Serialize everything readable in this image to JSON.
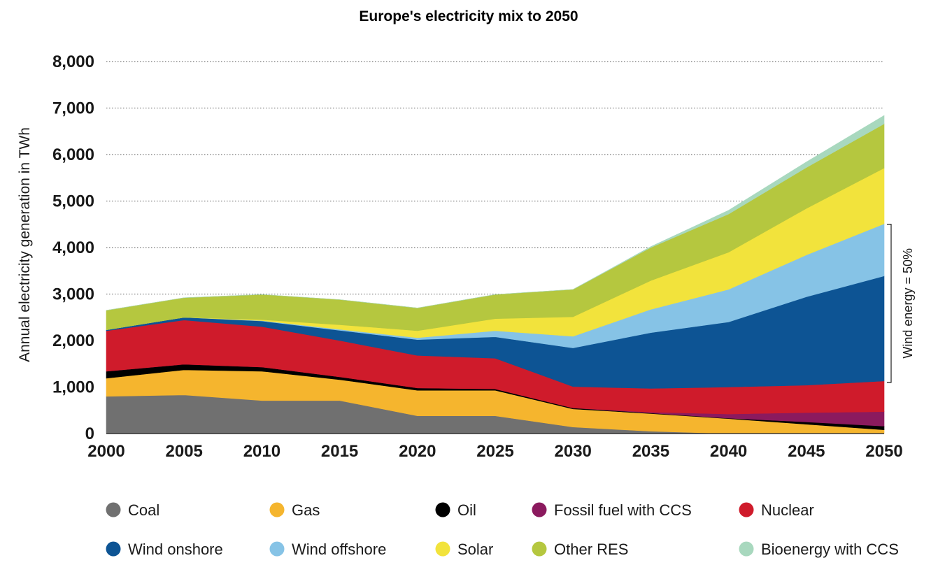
{
  "chart_data": {
    "type": "area",
    "stacked": true,
    "title": "Europe's electricity mix to 2050",
    "xlabel": "",
    "ylabel": "Annual electricity generation in TWh",
    "x": [
      2000,
      2005,
      2010,
      2015,
      2020,
      2025,
      2030,
      2035,
      2040,
      2045,
      2050
    ],
    "x_ticks": [
      "2000",
      "2005",
      "2010",
      "2015",
      "2020",
      "2025",
      "2030",
      "2035",
      "2040",
      "2045",
      "2050"
    ],
    "ylim": [
      0,
      8000
    ],
    "y_ticks": [
      "0",
      "1,000",
      "2,000",
      "3,000",
      "4,000",
      "5,000",
      "6,000",
      "7,000",
      "8,000"
    ],
    "grid": "horizontal dotted",
    "legend_position": "bottom",
    "series": [
      {
        "name": "Coal",
        "color": "#707070",
        "values": [
          800,
          830,
          710,
          710,
          380,
          380,
          140,
          50,
          0,
          0,
          0
        ]
      },
      {
        "name": "Gas",
        "color": "#f5b52e",
        "values": [
          390,
          540,
          630,
          450,
          550,
          550,
          390,
          380,
          320,
          200,
          80
        ]
      },
      {
        "name": "Oil",
        "color": "#000000",
        "values": [
          150,
          120,
          90,
          60,
          50,
          30,
          20,
          10,
          10,
          50,
          80
        ]
      },
      {
        "name": "Fossil fuel with CCS",
        "color": "#8b1a5e",
        "values": [
          0,
          0,
          0,
          0,
          0,
          0,
          0,
          20,
          90,
          200,
          310
        ]
      },
      {
        "name": "Nuclear",
        "color": "#cf1b2b",
        "values": [
          870,
          950,
          870,
          780,
          700,
          660,
          460,
          510,
          580,
          590,
          660
        ]
      },
      {
        "name": "Wind onshore",
        "color": "#0d5494",
        "values": [
          20,
          60,
          120,
          220,
          340,
          460,
          830,
          1200,
          1400,
          1900,
          2260
        ]
      },
      {
        "name": "Wind offshore",
        "color": "#86c3e6",
        "values": [
          0,
          0,
          10,
          20,
          40,
          130,
          250,
          500,
          700,
          900,
          1120
        ]
      },
      {
        "name": "Solar",
        "color": "#f2e33c",
        "values": [
          0,
          0,
          20,
          100,
          150,
          260,
          420,
          620,
          800,
          1000,
          1200
        ]
      },
      {
        "name": "Other RES",
        "color": "#b5c73f",
        "values": [
          420,
          420,
          540,
          540,
          490,
          520,
          590,
          710,
          820,
          880,
          950
        ]
      },
      {
        "name": "Bioenergy with CCS",
        "color": "#a8d8be",
        "values": [
          0,
          0,
          0,
          0,
          0,
          0,
          0,
          20,
          80,
          120,
          180
        ]
      }
    ],
    "annotations": [
      {
        "text": "Wind energy = 50%",
        "x": 2050,
        "y_range": [
          1100,
          4500
        ]
      }
    ]
  }
}
